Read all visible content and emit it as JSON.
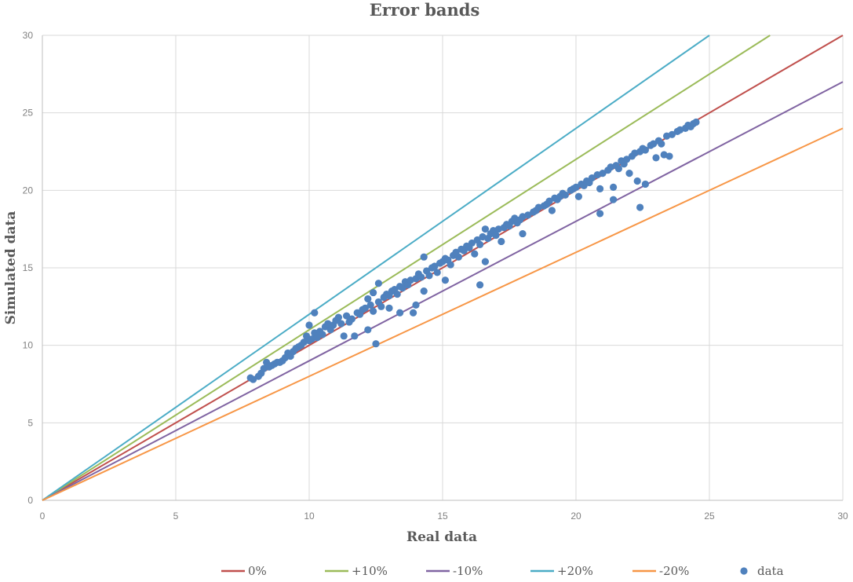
{
  "chart_data": {
    "type": "scatter",
    "title": "Error bands",
    "xlabel": "Real data",
    "ylabel": "Simulated data",
    "xlim": [
      0,
      30
    ],
    "ylim": [
      0,
      30
    ],
    "xticks": [
      "0",
      "5",
      "10",
      "15",
      "20",
      "25",
      "30"
    ],
    "yticks": [
      "0",
      "5",
      "10",
      "15",
      "20",
      "25",
      "30"
    ],
    "grid": true,
    "legend_position": "bottom",
    "lines": [
      {
        "name": "0%",
        "slope": 1.0,
        "color": "#c0504d"
      },
      {
        "name": "+10%",
        "slope": 1.1,
        "color": "#9bbb59"
      },
      {
        "name": "-10%",
        "slope": 0.9,
        "color": "#8064a2"
      },
      {
        "name": "+20%",
        "slope": 1.2,
        "color": "#4bacc6"
      },
      {
        "name": "-20%",
        "slope": 0.8,
        "color": "#f79646"
      }
    ],
    "scatter": {
      "name": "data",
      "color": "#4f81bd",
      "points": [
        [
          7.8,
          7.9
        ],
        [
          7.9,
          7.8
        ],
        [
          8.1,
          8.0
        ],
        [
          8.2,
          8.2
        ],
        [
          8.3,
          8.5
        ],
        [
          8.4,
          8.9
        ],
        [
          8.5,
          8.6
        ],
        [
          8.6,
          8.7
        ],
        [
          8.7,
          8.8
        ],
        [
          8.8,
          8.9
        ],
        [
          8.9,
          8.9
        ],
        [
          9.0,
          9.0
        ],
        [
          9.1,
          9.2
        ],
        [
          9.2,
          9.5
        ],
        [
          9.3,
          9.3
        ],
        [
          9.4,
          9.6
        ],
        [
          9.5,
          9.8
        ],
        [
          9.6,
          9.9
        ],
        [
          9.7,
          10.0
        ],
        [
          9.8,
          10.2
        ],
        [
          9.9,
          10.6
        ],
        [
          10.0,
          10.3
        ],
        [
          10.0,
          11.3
        ],
        [
          10.1,
          10.4
        ],
        [
          10.2,
          12.1
        ],
        [
          10.2,
          10.8
        ],
        [
          10.3,
          10.5
        ],
        [
          10.4,
          10.9
        ],
        [
          10.5,
          10.7
        ],
        [
          10.6,
          11.2
        ],
        [
          10.7,
          11.4
        ],
        [
          10.8,
          11.0
        ],
        [
          10.9,
          11.3
        ],
        [
          11.0,
          11.6
        ],
        [
          11.1,
          11.8
        ],
        [
          11.2,
          11.4
        ],
        [
          11.3,
          10.6
        ],
        [
          11.4,
          11.9
        ],
        [
          11.5,
          11.5
        ],
        [
          11.6,
          11.7
        ],
        [
          11.7,
          10.6
        ],
        [
          11.8,
          12.1
        ],
        [
          11.9,
          12.0
        ],
        [
          12.0,
          12.3
        ],
        [
          12.1,
          12.4
        ],
        [
          12.2,
          13.0
        ],
        [
          12.2,
          11.0
        ],
        [
          12.3,
          12.6
        ],
        [
          12.4,
          13.4
        ],
        [
          12.4,
          12.2
        ],
        [
          12.5,
          10.1
        ],
        [
          12.6,
          12.8
        ],
        [
          12.6,
          14.0
        ],
        [
          12.7,
          12.5
        ],
        [
          12.8,
          13.1
        ],
        [
          12.9,
          13.3
        ],
        [
          13.0,
          13.2
        ],
        [
          13.0,
          12.4
        ],
        [
          13.1,
          13.5
        ],
        [
          13.2,
          13.6
        ],
        [
          13.3,
          13.3
        ],
        [
          13.4,
          13.8
        ],
        [
          13.4,
          12.1
        ],
        [
          13.5,
          13.7
        ],
        [
          13.6,
          14.1
        ],
        [
          13.7,
          13.9
        ],
        [
          13.8,
          14.2
        ],
        [
          13.9,
          12.1
        ],
        [
          14.0,
          14.3
        ],
        [
          14.0,
          12.6
        ],
        [
          14.1,
          14.6
        ],
        [
          14.2,
          14.4
        ],
        [
          14.3,
          15.7
        ],
        [
          14.3,
          13.5
        ],
        [
          14.4,
          14.8
        ],
        [
          14.5,
          14.5
        ],
        [
          14.6,
          15.0
        ],
        [
          14.7,
          15.1
        ],
        [
          14.8,
          14.7
        ],
        [
          14.9,
          15.3
        ],
        [
          15.0,
          15.4
        ],
        [
          15.1,
          15.6
        ],
        [
          15.1,
          14.2
        ],
        [
          15.2,
          15.5
        ],
        [
          15.3,
          15.2
        ],
        [
          15.4,
          15.8
        ],
        [
          15.5,
          16.0
        ],
        [
          15.6,
          15.7
        ],
        [
          15.7,
          16.2
        ],
        [
          15.8,
          16.1
        ],
        [
          15.9,
          16.4
        ],
        [
          16.0,
          16.3
        ],
        [
          16.1,
          16.6
        ],
        [
          16.2,
          15.9
        ],
        [
          16.3,
          16.8
        ],
        [
          16.4,
          16.5
        ],
        [
          16.4,
          13.9
        ],
        [
          16.5,
          17.0
        ],
        [
          16.6,
          17.5
        ],
        [
          16.6,
          15.4
        ],
        [
          16.7,
          16.9
        ],
        [
          16.8,
          17.2
        ],
        [
          16.9,
          17.4
        ],
        [
          17.0,
          17.1
        ],
        [
          17.1,
          17.5
        ],
        [
          17.2,
          16.7
        ],
        [
          17.3,
          17.6
        ],
        [
          17.4,
          17.8
        ],
        [
          17.5,
          17.7
        ],
        [
          17.6,
          18.0
        ],
        [
          17.7,
          18.2
        ],
        [
          17.8,
          17.9
        ],
        [
          17.9,
          18.1
        ],
        [
          18.0,
          18.3
        ],
        [
          18.0,
          17.2
        ],
        [
          18.2,
          18.4
        ],
        [
          18.4,
          18.6
        ],
        [
          18.5,
          18.7
        ],
        [
          18.6,
          18.9
        ],
        [
          18.8,
          19.0
        ],
        [
          18.9,
          19.1
        ],
        [
          19.0,
          19.3
        ],
        [
          19.1,
          18.7
        ],
        [
          19.2,
          19.5
        ],
        [
          19.3,
          19.4
        ],
        [
          19.4,
          19.6
        ],
        [
          19.5,
          19.8
        ],
        [
          19.6,
          19.7
        ],
        [
          19.8,
          20.0
        ],
        [
          19.9,
          20.1
        ],
        [
          20.0,
          20.2
        ],
        [
          20.1,
          19.6
        ],
        [
          20.2,
          20.4
        ],
        [
          20.3,
          20.3
        ],
        [
          20.4,
          20.6
        ],
        [
          20.5,
          20.5
        ],
        [
          20.6,
          20.8
        ],
        [
          20.8,
          21.0
        ],
        [
          20.9,
          20.1
        ],
        [
          20.9,
          18.5
        ],
        [
          21.0,
          21.1
        ],
        [
          21.2,
          21.3
        ],
        [
          21.3,
          21.5
        ],
        [
          21.4,
          20.2
        ],
        [
          21.4,
          19.4
        ],
        [
          21.5,
          21.6
        ],
        [
          21.6,
          21.4
        ],
        [
          21.7,
          21.9
        ],
        [
          21.8,
          21.7
        ],
        [
          21.9,
          22.0
        ],
        [
          22.0,
          21.1
        ],
        [
          22.1,
          22.2
        ],
        [
          22.2,
          22.4
        ],
        [
          22.3,
          20.6
        ],
        [
          22.4,
          22.5
        ],
        [
          22.4,
          18.9
        ],
        [
          22.5,
          22.7
        ],
        [
          22.6,
          22.6
        ],
        [
          22.6,
          20.4
        ],
        [
          22.8,
          22.9
        ],
        [
          22.9,
          23.0
        ],
        [
          23.0,
          22.1
        ],
        [
          23.1,
          23.2
        ],
        [
          23.2,
          23.0
        ],
        [
          23.3,
          22.3
        ],
        [
          23.4,
          23.5
        ],
        [
          23.5,
          22.2
        ],
        [
          23.6,
          23.6
        ],
        [
          23.8,
          23.8
        ],
        [
          23.9,
          23.9
        ],
        [
          24.1,
          24.0
        ],
        [
          24.2,
          24.2
        ],
        [
          24.3,
          24.1
        ],
        [
          24.4,
          24.3
        ],
        [
          24.5,
          24.4
        ]
      ]
    }
  }
}
